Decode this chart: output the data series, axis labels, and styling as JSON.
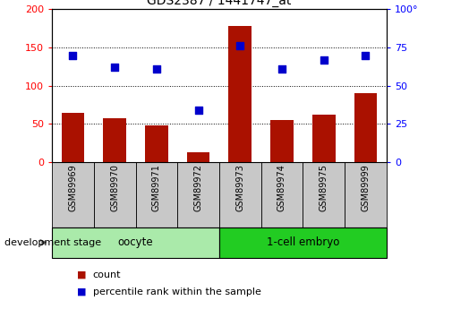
{
  "title": "GDS2387 / 1441747_at",
  "samples": [
    "GSM89969",
    "GSM89970",
    "GSM89971",
    "GSM89972",
    "GSM89973",
    "GSM89974",
    "GSM89975",
    "GSM89999"
  ],
  "counts": [
    65,
    58,
    48,
    13,
    178,
    55,
    62,
    90
  ],
  "percentiles": [
    70,
    62,
    61,
    34,
    76,
    61,
    67,
    70
  ],
  "bar_color": "#aa1100",
  "dot_color": "#0000cc",
  "left_ylim": [
    0,
    200
  ],
  "right_ylim": [
    0,
    100
  ],
  "left_yticks": [
    0,
    50,
    100,
    150,
    200
  ],
  "right_yticks": [
    0,
    25,
    50,
    75,
    100
  ],
  "right_yticklabels": [
    "0",
    "25",
    "50",
    "75",
    "100°"
  ],
  "left_yticklabels": [
    "0",
    "50",
    "100",
    "150",
    "200"
  ],
  "groups": [
    {
      "label": "oocyte",
      "start": 0,
      "end": 3,
      "color": "#aaeaaa"
    },
    {
      "label": "1-cell embryo",
      "start": 4,
      "end": 7,
      "color": "#22cc22"
    }
  ],
  "group_label": "development stage",
  "legend": [
    {
      "label": "count",
      "color": "#aa1100"
    },
    {
      "label": "percentile rank within the sample",
      "color": "#0000cc"
    }
  ],
  "tick_bg_color": "#c8c8c8",
  "plot_bg": "#ffffff",
  "fig_bg": "#ffffff"
}
